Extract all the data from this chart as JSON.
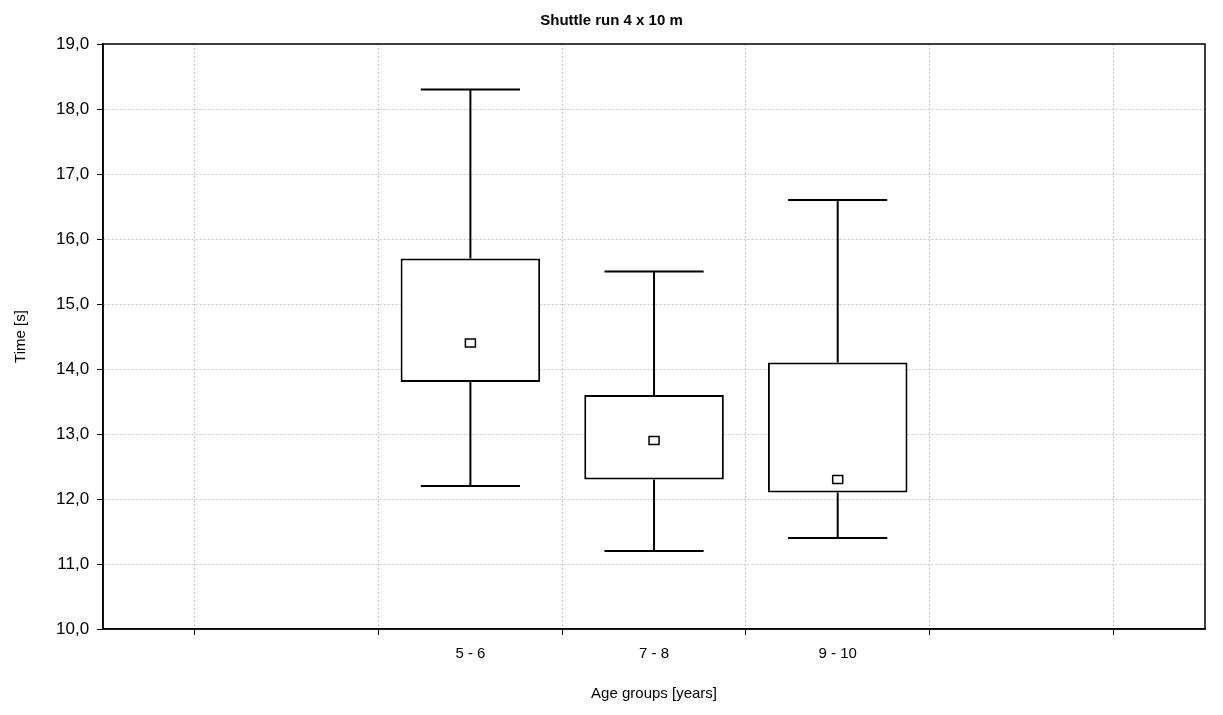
{
  "chart_data": {
    "type": "box",
    "title": "Shuttle run 4 x 10 m",
    "xlabel": "Age groups [years]",
    "ylabel": "Time [s]",
    "categories": [
      null,
      null,
      "5 - 6",
      "7 - 8",
      "9 - 10",
      null,
      null
    ],
    "boxes": [
      null,
      null,
      {
        "low": 12.2,
        "q1": 13.8,
        "median": 14.4,
        "q3": 15.7,
        "high": 18.3
      },
      {
        "low": 11.2,
        "q1": 12.3,
        "median": 12.9,
        "q3": 13.6,
        "high": 15.5
      },
      {
        "low": 11.4,
        "q1": 12.1,
        "median": 12.3,
        "q3": 14.1,
        "high": 16.6
      },
      null,
      null
    ],
    "color": "#000000",
    "ylim": [
      10,
      19
    ],
    "yticks": [
      {
        "value": 10,
        "label": "10,0"
      },
      {
        "value": 11,
        "label": "11,0"
      },
      {
        "value": 12,
        "label": "12,0"
      },
      {
        "value": 13,
        "label": "13,0"
      },
      {
        "value": 14,
        "label": "14,0"
      },
      {
        "value": 15,
        "label": "15,0"
      },
      {
        "value": 16,
        "label": "16,0"
      },
      {
        "value": 17,
        "label": "17,0"
      },
      {
        "value": 18,
        "label": "18,0"
      },
      {
        "value": 19,
        "label": "19,0"
      }
    ],
    "grid": true,
    "legend": false
  }
}
